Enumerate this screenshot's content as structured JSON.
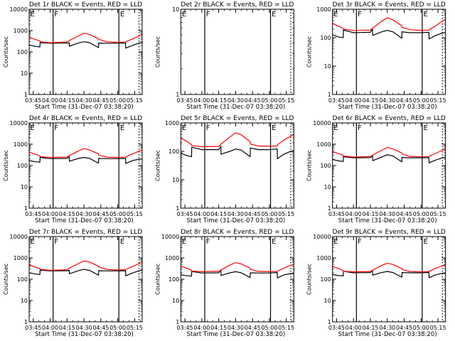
{
  "colors": {
    "events": "#000000",
    "lld": "#ff0000",
    "background": "#ffffff"
  },
  "chart_data": {
    "type": "line",
    "layout": "3x3 grid",
    "common": {
      "x_unit": "minutes after 03:45",
      "xlim": [
        -3.65,
        96.7
      ],
      "x_ticks": [
        0,
        15,
        30,
        45,
        60,
        75,
        90
      ],
      "x_tick_labels": [
        "03:45",
        "04:00",
        "04:15",
        "04:30",
        "04:45",
        "05:00",
        "05:15"
      ],
      "xlabel": "Start Time (31-Dec-07 03:38:20)",
      "ylabel": "Counts/sec",
      "yscale": "log",
      "legend_text": "BLACK = Events, RED = LLD",
      "vlines": [
        {
          "x": 17.6,
          "style": "solid"
        },
        {
          "x": 76.0,
          "style": "solid"
        },
        {
          "x": 93.9,
          "style": "dotted"
        }
      ],
      "segment_labels": [
        {
          "x": -3.3,
          "label": "E"
        },
        {
          "x": 18.0,
          "label": "F"
        },
        {
          "x": 76.4,
          "label": "E"
        }
      ],
      "x": [
        -3.5,
        2,
        5.9,
        6.1,
        15,
        30,
        31.9,
        32.1,
        40,
        45,
        50,
        57.9,
        58.1,
        65,
        75,
        81.9,
        82.1,
        88,
        94,
        96.5
      ]
    },
    "panels": [
      {
        "title": "Det 1r BLACK = Events, RED = LLD",
        "ylim": [
          1,
          10000
        ],
        "y_tick_labels": [
          "1",
          "10",
          "100",
          "1000",
          "10000"
        ],
        "series": [
          {
            "name": "Events",
            "color": "#000000",
            "values": [
              210,
              180,
              170,
              270,
              255,
              260,
              265,
              185,
              260,
              300,
              270,
              160,
              260,
              255,
              255,
              260,
              150,
              200,
              260,
              275
            ]
          },
          {
            "name": "LLD",
            "color": "#ff0000",
            "values": [
              480,
              380,
              320,
              300,
              270,
              290,
              330,
              340,
              560,
              750,
              650,
              420,
              390,
              300,
              280,
              290,
              300,
              400,
              560,
              650
            ]
          }
        ]
      },
      {
        "title": "Det 2r BLACK = Events, RED = LLD",
        "ylim": [
          1,
          10
        ],
        "y_tick_labels": [
          "1",
          "10"
        ],
        "series": []
      },
      {
        "title": "Det 3r BLACK = Events, RED = LLD",
        "ylim": [
          1,
          1000
        ],
        "y_tick_labels": [
          "1",
          "10",
          "100",
          "1000"
        ],
        "series": [
          {
            "name": "Events",
            "color": "#000000",
            "values": [
              125,
              105,
              100,
              185,
              150,
              155,
              205,
              120,
              160,
              180,
              160,
              95,
              160,
              150,
              150,
              155,
              90,
              120,
              145,
              150
            ]
          },
          {
            "name": "LLD",
            "color": "#ff0000",
            "values": [
              320,
              250,
              210,
              200,
              180,
              185,
              210,
              215,
              380,
              500,
              430,
              260,
              230,
              190,
              180,
              185,
              190,
              260,
              380,
              430
            ]
          }
        ]
      },
      {
        "title": "Det 4r BLACK = Events, RED = LLD",
        "ylim": [
          1,
          10000
        ],
        "y_tick_labels": [
          "1",
          "10",
          "100",
          "1000",
          "10000"
        ],
        "series": [
          {
            "name": "Events",
            "color": "#000000",
            "values": [
              170,
              150,
              145,
              240,
              210,
              215,
              270,
              160,
              215,
              240,
              215,
              130,
              215,
              210,
              210,
              215,
              125,
              170,
              200,
              200
            ]
          },
          {
            "name": "LLD",
            "color": "#ff0000",
            "values": [
              420,
              340,
              280,
              260,
              240,
              250,
              280,
              290,
              480,
              620,
              540,
              350,
              310,
              250,
              240,
              245,
              255,
              350,
              470,
              520
            ]
          }
        ]
      },
      {
        "title": "Det 5r BLACK = Events, RED = LLD",
        "ylim": [
          1,
          1000
        ],
        "y_tick_labels": [
          "1",
          "10",
          "100",
          "1000"
        ],
        "series": [
          {
            "name": "Events",
            "color": "#000000",
            "values": [
              85,
              70,
              65,
              140,
              115,
              115,
              150,
              80,
              100,
              120,
              110,
              65,
              130,
              115,
              115,
              120,
              55,
              80,
              100,
              105
            ]
          },
          {
            "name": "LLD",
            "color": "#ff0000",
            "values": [
              290,
              220,
              170,
              160,
              145,
              150,
              175,
              180,
              320,
              450,
              380,
              220,
              180,
              155,
              150,
              155,
              170,
              250,
              340,
              380
            ]
          }
        ]
      },
      {
        "title": "Det 6r BLACK = Events, RED = LLD",
        "ylim": [
          1,
          10000
        ],
        "y_tick_labels": [
          "1",
          "10",
          "100",
          "1000",
          "10000"
        ],
        "series": [
          {
            "name": "Events",
            "color": "#000000",
            "values": [
              190,
              165,
              155,
              260,
              230,
              235,
              290,
              170,
              250,
              320,
              280,
              150,
              240,
              230,
              230,
              235,
              135,
              180,
              230,
              240
            ]
          },
          {
            "name": "LLD",
            "color": "#ff0000",
            "values": [
              450,
              360,
              300,
              280,
              250,
              265,
              300,
              310,
              520,
              700,
              600,
              390,
              350,
              270,
              255,
              265,
              275,
              370,
              520,
              600
            ]
          }
        ]
      },
      {
        "title": "Det 7r BLACK = Events, RED = LLD",
        "ylim": [
          1,
          10000
        ],
        "y_tick_labels": [
          "1",
          "10",
          "100",
          "1000",
          "10000"
        ],
        "series": [
          {
            "name": "Events",
            "color": "#000000",
            "values": [
              200,
              175,
              165,
              265,
              245,
              250,
              260,
              180,
              250,
              290,
              260,
              155,
              250,
              245,
              245,
              250,
              145,
              195,
              250,
              265
            ]
          },
          {
            "name": "LLD",
            "color": "#ff0000",
            "values": [
              470,
              370,
              310,
              290,
              260,
              280,
              320,
              330,
              540,
              720,
              630,
              410,
              380,
              290,
              270,
              280,
              290,
              390,
              540,
              630
            ]
          }
        ]
      },
      {
        "title": "Det 8r BLACK = Events, RED = LLD",
        "ylim": [
          1,
          10000
        ],
        "y_tick_labels": [
          "1",
          "10",
          "100",
          "1000",
          "10000"
        ],
        "series": [
          {
            "name": "Events",
            "color": "#000000",
            "values": [
              160,
              145,
              140,
              230,
              195,
              200,
              265,
              150,
              200,
              225,
              200,
              120,
              200,
              195,
              195,
              205,
              115,
              160,
              185,
              180
            ]
          },
          {
            "name": "LLD",
            "color": "#ff0000",
            "values": [
              400,
              320,
              260,
              240,
              225,
              235,
              260,
              270,
              460,
              600,
              520,
              330,
              290,
              235,
              225,
              230,
              240,
              330,
              450,
              490
            ]
          }
        ]
      },
      {
        "title": "Det 9r BLACK = Events, RED = LLD",
        "ylim": [
          1,
          10000
        ],
        "y_tick_labels": [
          "1",
          "10",
          "100",
          "1000",
          "10000"
        ],
        "series": [
          {
            "name": "Events",
            "color": "#000000",
            "values": [
              165,
              148,
              142,
              235,
              200,
              205,
              260,
              155,
              205,
              230,
              205,
              125,
              205,
              200,
              200,
              208,
              118,
              162,
              190,
              185
            ]
          },
          {
            "name": "LLD",
            "color": "#ff0000",
            "values": [
              390,
              315,
              255,
              235,
              220,
              230,
              255,
              265,
              440,
              560,
              490,
              320,
              285,
              230,
              220,
              225,
              235,
              320,
              430,
              470
            ]
          }
        ]
      }
    ]
  }
}
